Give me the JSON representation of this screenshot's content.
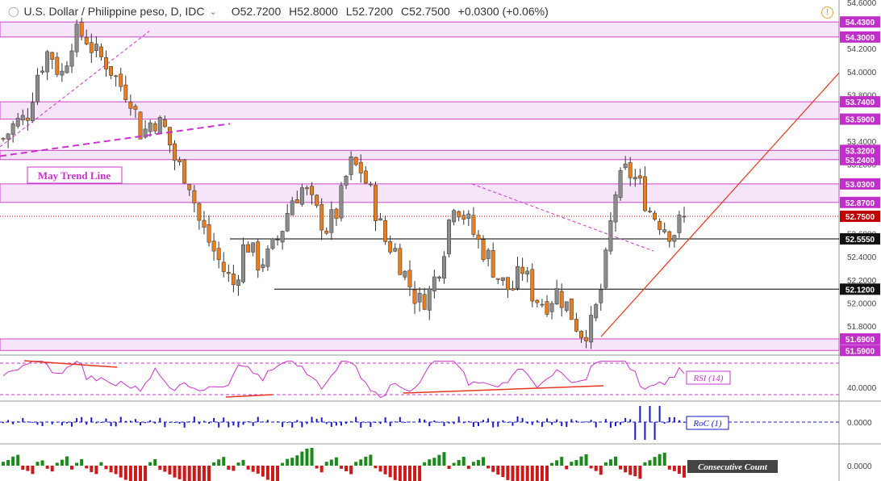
{
  "header": {
    "title": "U.S. Dollar / Philippine peso, D, IDC",
    "open": "O52.7200",
    "high": "H52.8000",
    "low": "L52.7200",
    "close": "C52.7500",
    "change": "+0.0300 (+0.06%)",
    "menu_icon": "circle-icon",
    "dropdown_icon": "chevron-down-icon",
    "alert_icon": "warning-icon",
    "alert_symbol": "!"
  },
  "chart_data": {
    "type": "candlestick",
    "ylim": [
      51.55,
      54.62
    ],
    "axis_ticks": [
      "54.6000",
      "54.2000",
      "54.0000",
      "53.8000",
      "53.4000",
      "53.2000",
      "52.6000",
      "52.4000",
      "52.2000",
      "52.0000",
      "51.8000"
    ],
    "zones": [
      {
        "low": 54.3,
        "high": 54.43,
        "labels": [
          "54.4300",
          "54.3000"
        ]
      },
      {
        "low": 53.59,
        "high": 53.74,
        "labels": [
          "53.7400",
          "53.5900"
        ]
      },
      {
        "low": 53.24,
        "high": 53.32,
        "labels": [
          "53.3200",
          "53.2400"
        ]
      },
      {
        "low": 52.87,
        "high": 53.03,
        "labels": [
          "53.0300",
          "52.8700"
        ]
      },
      {
        "low": 51.59,
        "high": 51.69,
        "labels": [
          "51.6900",
          "51.5900"
        ]
      }
    ],
    "levels": [
      {
        "value": 52.555,
        "label": "52.5550"
      },
      {
        "value": 52.12,
        "label": "52.1200"
      }
    ],
    "last_price": {
      "value": 52.75,
      "label": "52.7500"
    },
    "annotation": "May Trend Line",
    "candle_count": 140,
    "path": [
      53.42,
      53.55,
      53.6,
      54.0,
      54.2,
      53.95,
      54.3,
      54.33,
      54.15,
      54.08,
      53.9,
      53.8,
      53.45,
      53.6,
      53.5,
      53.2,
      53.1,
      52.7,
      52.5,
      52.3,
      52.15,
      52.55,
      52.35,
      52.4,
      52.6,
      52.9,
      53.0,
      52.8,
      52.65,
      52.8,
      53.2,
      53.15,
      52.9,
      52.55,
      52.45,
      52.2,
      52.0,
      52.1,
      52.4,
      52.9,
      52.75,
      52.55,
      52.4,
      52.2,
      52.1,
      52.3,
      52.05,
      52.0,
      52.1,
      51.95,
      51.75,
      51.8,
      52.2,
      52.95,
      53.15,
      53.05,
      52.8,
      52.7,
      52.6,
      52.75
    ],
    "overbought_trendlines": "dashed",
    "colors": {
      "up": "#8c8c8c",
      "down": "#e87e1e",
      "zone_fill": "#f6e5f9",
      "zone_border": "#cc44cc",
      "support": "#000000",
      "trend": "#e8361e",
      "annotation": "#cc33cc",
      "last_price": "#c00000"
    },
    "indicators": [
      {
        "name": "RSI (14)",
        "tick": "40.0000",
        "color": "#cc33cc"
      },
      {
        "name": "RoC (1)",
        "tick": "0.0000",
        "color": "#1a1ac8"
      },
      {
        "name": "Consecutive Count",
        "tick": "0.0000",
        "colors": [
          "#cc1a1a",
          "#1a8a1a"
        ]
      }
    ]
  }
}
